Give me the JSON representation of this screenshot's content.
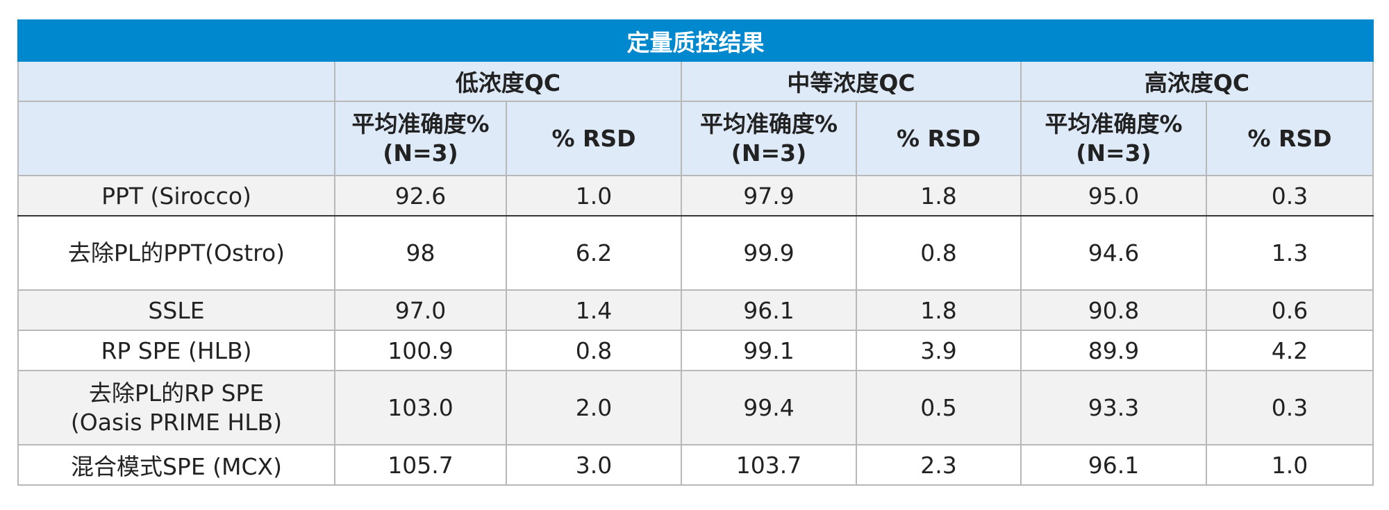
{
  "title": "定量质控结果",
  "groups": [
    "低浓度QC",
    "中等浓度QC",
    "高浓度QC"
  ],
  "metrics": [
    "平均准确度%\n(N=3)",
    "% RSD"
  ],
  "rows": [
    {
      "method": "PPT (Sirocco)",
      "values": [
        "92.6",
        "1.0",
        "97.9",
        "1.8",
        "95.0",
        "0.3"
      ]
    },
    {
      "method": "去除PL的PPT(Ostro)",
      "values": [
        "98",
        "6.2",
        "99.9",
        "0.8",
        "94.6",
        "1.3"
      ]
    },
    {
      "method": "SSLE",
      "values": [
        "97.0",
        "1.4",
        "96.1",
        "1.8",
        "90.8",
        "0.6"
      ]
    },
    {
      "method": "RP SPE (HLB)",
      "values": [
        "100.9",
        "0.8",
        "99.1",
        "3.9",
        "89.9",
        "4.2"
      ]
    },
    {
      "method": "去除PL的RP SPE\n(Oasis PRIME HLB)",
      "values": [
        "103.0",
        "2.0",
        "99.4",
        "0.5",
        "93.3",
        "0.3"
      ]
    },
    {
      "method": "混合模式SPE (MCX)",
      "values": [
        "105.7",
        "3.0",
        "103.7",
        "2.3",
        "96.1",
        "1.0"
      ]
    }
  ]
}
